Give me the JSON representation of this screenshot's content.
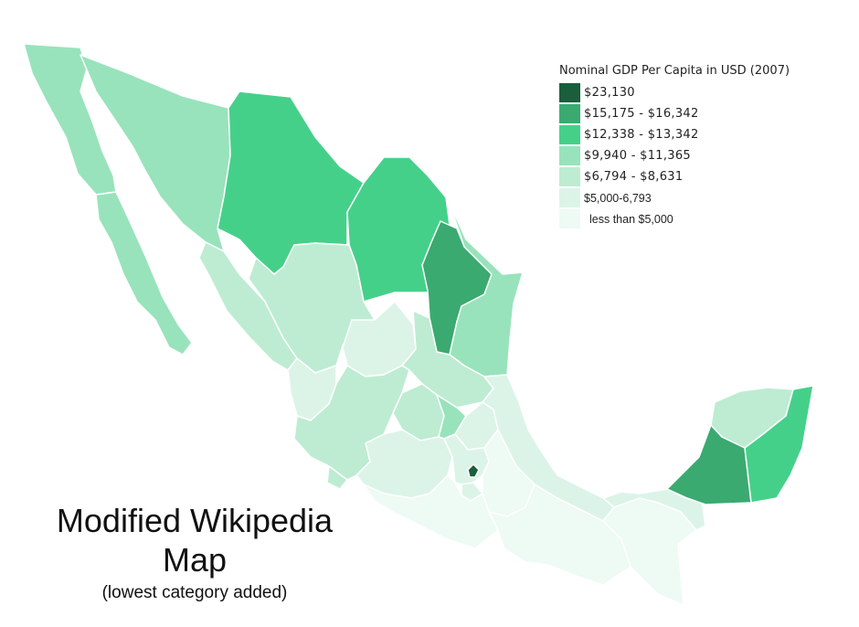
{
  "legend": {
    "title": "Nominal GDP Per Capita in USD (2007)",
    "items": [
      {
        "label": "$23,130",
        "color": "#1a5e3c"
      },
      {
        "label": "$15,175 - $16,342",
        "color": "#3aaa70"
      },
      {
        "label": "$12,338 - $13,342",
        "color": "#45d08a"
      },
      {
        "label": "$9,940 - $11,365",
        "color": "#98e3bb"
      },
      {
        "label": "$6,794 - $8,631",
        "color": "#bdecd2"
      },
      {
        "label": "$5,000-6,793",
        "color": "#dcf4e8"
      },
      {
        "label": "less than $5,000",
        "color": "#eefaf4"
      }
    ]
  },
  "caption": {
    "title_line1": "Modified Wikipedia",
    "title_line2": "Map",
    "subtitle": "(lowest category added)"
  },
  "regions": [
    {
      "name": "Baja California",
      "tier": 3
    },
    {
      "name": "Baja California Sur",
      "tier": 3
    },
    {
      "name": "Sonora",
      "tier": 3
    },
    {
      "name": "Chihuahua",
      "tier": 2
    },
    {
      "name": "Coahuila",
      "tier": 2
    },
    {
      "name": "Nuevo León",
      "tier": 1
    },
    {
      "name": "Tamaulipas",
      "tier": 3
    },
    {
      "name": "Sinaloa",
      "tier": 4
    },
    {
      "name": "Durango",
      "tier": 4
    },
    {
      "name": "Zacatecas",
      "tier": 5
    },
    {
      "name": "San Luis Potosí",
      "tier": 4
    },
    {
      "name": "Nayarit",
      "tier": 5
    },
    {
      "name": "Aguascalientes",
      "tier": 3
    },
    {
      "name": "Jalisco",
      "tier": 4
    },
    {
      "name": "Guanajuato",
      "tier": 4
    },
    {
      "name": "Querétaro",
      "tier": 3
    },
    {
      "name": "Hidalgo",
      "tier": 5
    },
    {
      "name": "Veracruz",
      "tier": 5
    },
    {
      "name": "Colima",
      "tier": 4
    },
    {
      "name": "Michoacán",
      "tier": 5
    },
    {
      "name": "Estado de México",
      "tier": 5
    },
    {
      "name": "Distrito Federal",
      "tier": 0
    },
    {
      "name": "Morelos",
      "tier": 5
    },
    {
      "name": "Tlaxcala",
      "tier": 6
    },
    {
      "name": "Puebla",
      "tier": 6
    },
    {
      "name": "Guerrero",
      "tier": 6
    },
    {
      "name": "Oaxaca",
      "tier": 6
    },
    {
      "name": "Chiapas",
      "tier": 6
    },
    {
      "name": "Tabasco",
      "tier": 5
    },
    {
      "name": "Campeche",
      "tier": 1
    },
    {
      "name": "Yucatán",
      "tier": 4
    },
    {
      "name": "Quintana Roo",
      "tier": 2
    }
  ]
}
